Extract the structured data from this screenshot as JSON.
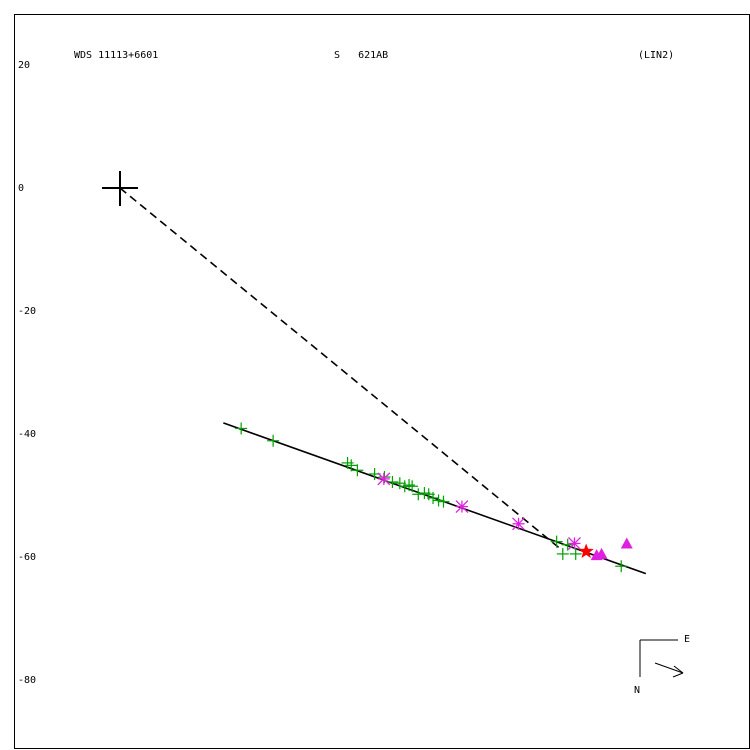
{
  "header": {
    "wds_id": "WDS 11113+6601",
    "discoverer": "S   621AB",
    "method": "(LIN2)"
  },
  "compass": {
    "east_label": "E",
    "north_label": "N"
  },
  "chart_data": {
    "type": "scatter",
    "title": "",
    "xlabel": "",
    "ylabel": "",
    "y_ticks": [
      "20",
      "0",
      "-20",
      "-40",
      "-60",
      "-80"
    ],
    "y_tick_values": [
      20,
      0,
      -20,
      -40,
      -60,
      -80
    ],
    "ylim": [
      -91.6,
      28.3
    ],
    "xlim": [
      -17.1,
      102.1
    ],
    "primary_star": {
      "x": 0,
      "y": 0
    },
    "fit_line": {
      "from": [
        16.8,
        -38.2
      ],
      "to": [
        85.5,
        -62.7
      ]
    },
    "dashed_line": {
      "from": [
        0,
        0
      ],
      "to": [
        72,
        -59
      ]
    },
    "colors": {
      "green_points": "#00a000",
      "magenta_points": "#e020e0",
      "star": "#ff0000",
      "fit_line": "#000000",
      "axes": "#000000"
    },
    "series": [
      {
        "marker": "plus-green",
        "points": [
          [
            19.7,
            -39.1
          ],
          [
            24.9,
            -41.1
          ],
          [
            37.0,
            -44.7
          ],
          [
            37.6,
            -45.1
          ],
          [
            38.6,
            -45.9
          ],
          [
            41.4,
            -46.5
          ],
          [
            43.0,
            -47.0
          ],
          [
            44.3,
            -47.8
          ],
          [
            45.5,
            -48.0
          ],
          [
            46.3,
            -48.5
          ],
          [
            47.0,
            -48.3
          ],
          [
            47.5,
            -48.5
          ],
          [
            48.5,
            -49.8
          ],
          [
            49.5,
            -49.6
          ],
          [
            50.2,
            -49.8
          ],
          [
            50.9,
            -50.4
          ],
          [
            51.8,
            -50.8
          ],
          [
            52.6,
            -51.0
          ],
          [
            71.0,
            -57.5
          ],
          [
            72.0,
            -59.5
          ],
          [
            72.8,
            -58.0
          ],
          [
            74.1,
            -59.5
          ],
          [
            81.5,
            -61.5
          ]
        ]
      },
      {
        "marker": "asterisk-magenta",
        "points": [
          [
            42.9,
            -47.3
          ],
          [
            55.6,
            -51.8
          ],
          [
            64.8,
            -54.6
          ],
          [
            73.9,
            -57.8
          ]
        ]
      },
      {
        "marker": "triangle-magenta",
        "points": [
          [
            77.5,
            -59.7
          ],
          [
            78.3,
            -59.5
          ],
          [
            82.4,
            -57.8
          ]
        ]
      },
      {
        "marker": "star-red",
        "points": [
          [
            75.8,
            -59.1
          ]
        ]
      }
    ]
  }
}
